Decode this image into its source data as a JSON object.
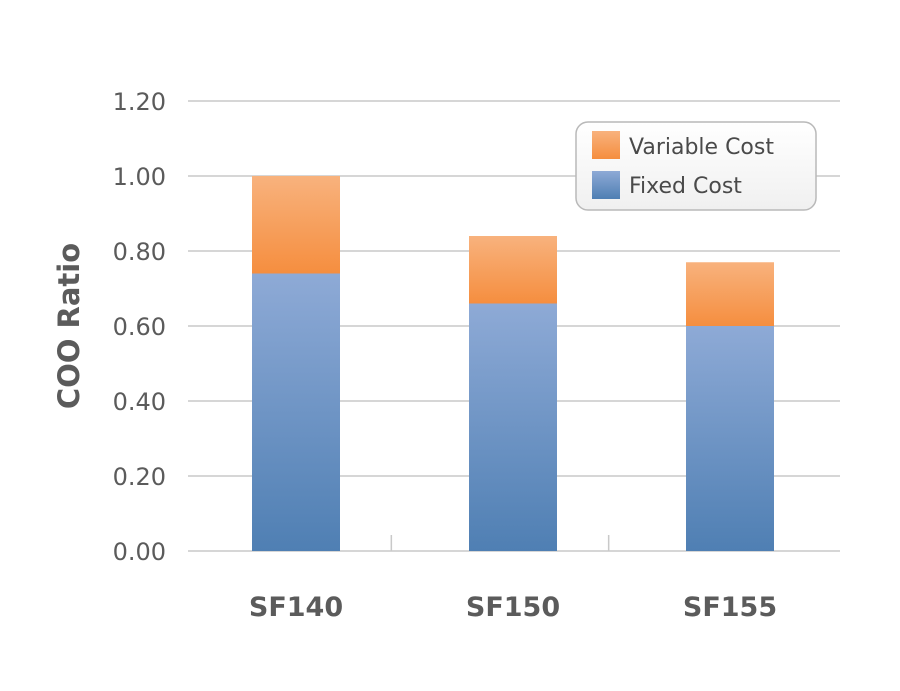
{
  "chart_data": {
    "type": "bar",
    "stacked": true,
    "categories": [
      "SF140",
      "SF150",
      "SF155"
    ],
    "series": [
      {
        "name": "Fixed Cost",
        "values": [
          0.74,
          0.66,
          0.6
        ]
      },
      {
        "name": "Variable Cost",
        "values": [
          0.26,
          0.18,
          0.17
        ]
      }
    ],
    "ylabel": "COO Ratio",
    "xlabel": "",
    "ylim": [
      0,
      1.2
    ],
    "yticks": [
      "0.00",
      "0.20",
      "0.40",
      "0.60",
      "0.80",
      "1.00",
      "1.20"
    ],
    "grid": true,
    "legend": {
      "placement": "top-right",
      "items": [
        "Variable Cost",
        "Fixed Cost"
      ]
    },
    "colors": {
      "Fixed Cost": "#6a93c8",
      "Variable Cost": "#f7a25f",
      "grid": "#c9c9c9",
      "text": "#5b5b5b"
    }
  }
}
